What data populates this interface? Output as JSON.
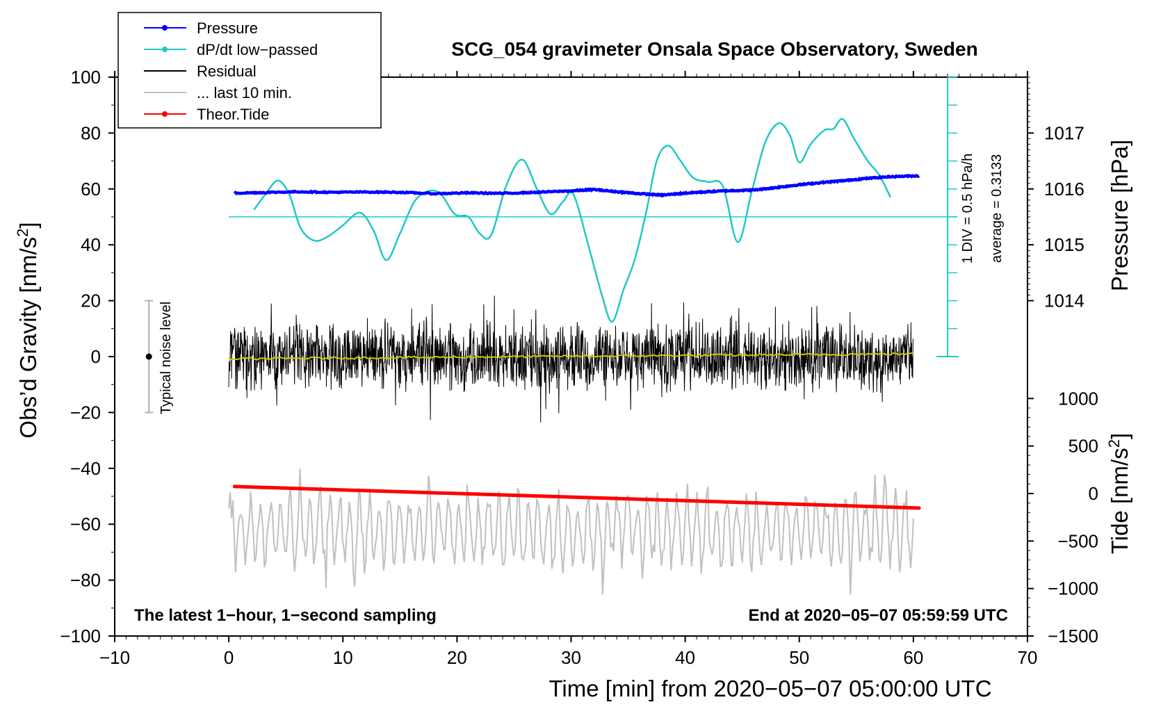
{
  "chart_data": {
    "type": "line",
    "title": "SCG_054 gravimeter Onsala Space Observatory, Sweden",
    "xlabel": "Time [min] from 2020−05−07 05:00:00 UTC",
    "ylabel_left": "Obs’d Gravity [nm/s",
    "ylabel_left_sup": "2",
    "ylabel_left_end": "]",
    "ylabel_right_pressure": "Pressure [hPa]",
    "ylabel_right_tide": "Tide [nm/s",
    "ylabel_right_tide_sup": "2",
    "ylabel_right_tide_end": "]",
    "xlim": [
      -10,
      70
    ],
    "ylim": [
      -100,
      100
    ],
    "x_ticks": [
      -10,
      0,
      10,
      20,
      30,
      40,
      50,
      60,
      70
    ],
    "x_tick_labels": [
      "−10",
      "0",
      "10",
      "20",
      "30",
      "40",
      "50",
      "60",
      "70"
    ],
    "y_ticks": [
      -100,
      -80,
      -60,
      -40,
      -20,
      0,
      20,
      40,
      60,
      80,
      100
    ],
    "y_tick_labels": [
      "−100",
      "−80",
      "−60",
      "−40",
      "−20",
      "0",
      "20",
      "40",
      "60",
      "80",
      "100"
    ],
    "pressure_axis": {
      "ticks": [
        1014,
        1015,
        1016,
        1017
      ],
      "tick_labels": [
        "1014",
        "1015",
        "1016",
        "1017"
      ],
      "gravity_equivalent": [
        20,
        40,
        60,
        80
      ]
    },
    "tide_axis": {
      "ticks": [
        -1500,
        -1000,
        -500,
        0,
        500,
        1000
      ],
      "tick_labels": [
        "−1500",
        "−1000",
        "−500",
        "0",
        "500",
        "1000"
      ],
      "gravity_equivalent": [
        -100,
        -83,
        -66,
        -49,
        -32,
        -15
      ]
    },
    "legend": [
      {
        "label": "Pressure",
        "color": "#0000ff",
        "marker": true
      },
      {
        "label": "dP/dt low−passed",
        "color": "#20c8c8",
        "marker": true
      },
      {
        "label": "Residual",
        "color": "#000000",
        "marker": false
      },
      {
        "label": "... last 10 min.",
        "color": "#c0c0c0",
        "marker": false
      },
      {
        "label": "Theor.Tide",
        "color": "#ff0000",
        "marker": true
      }
    ],
    "annotations": {
      "bottom_left": "The latest 1−hour, 1−second sampling",
      "bottom_right": "End at 2020−05−07 05:59:59 UTC",
      "scale_div": "1 DIV = 0.5 hPa/h",
      "scale_average": "average = 0.3133",
      "noise": "Typical noise level"
    },
    "noise_bar": {
      "x": -7,
      "y_min": -20,
      "y_max": 20,
      "center": 0
    },
    "dpdt_scale": {
      "x": 63,
      "y_min": 0,
      "y_max": 100,
      "baseline": 50,
      "div_step": 10
    },
    "series": [
      {
        "name": "Pressure",
        "color": "#0000ff",
        "x": [
          0.5,
          3,
          6,
          9,
          12,
          15,
          18,
          21,
          24,
          27,
          30,
          32,
          34,
          36,
          38,
          40,
          42,
          44,
          46,
          48,
          50,
          52,
          54,
          56,
          58,
          60.5
        ],
        "y": [
          58.5,
          58.7,
          59,
          58.8,
          58.9,
          58.8,
          58.3,
          58.6,
          58.4,
          58.8,
          59.3,
          59.8,
          59,
          58.3,
          57.8,
          58.5,
          59,
          59.4,
          59.6,
          60.5,
          61.5,
          62.3,
          63,
          63.8,
          64.4,
          64.7
        ]
      },
      {
        "name": "dP/dt low−passed",
        "color": "#20c8c8",
        "x": [
          2.2,
          3.2,
          4.3,
          5.3,
          6.3,
          7.5,
          8.7,
          10,
          11.5,
          12.7,
          13.8,
          15,
          16.2,
          17.3,
          18.5,
          19.8,
          21,
          22,
          23,
          24.3,
          25.7,
          27,
          28.2,
          29.3,
          30.2,
          31.5,
          32.7,
          33.6,
          34.6,
          35.6,
          36.6,
          37.5,
          38.5,
          39.6,
          40.7,
          42,
          43.3,
          44.6,
          45.8,
          47,
          48.2,
          49.2,
          50,
          51,
          52.2,
          53,
          53.8,
          54.8,
          56,
          57,
          58
        ],
        "y": [
          52.5,
          58,
          63,
          58,
          46,
          41.5,
          43,
          47,
          51.5,
          45,
          34.5,
          44,
          55,
          59,
          58.5,
          51,
          50,
          44,
          43.5,
          61,
          70.5,
          60,
          51,
          55.5,
          58,
          40,
          22,
          12.5,
          24,
          35,
          52,
          70,
          75.5,
          70,
          64,
          62.5,
          61,
          41,
          58.5,
          76.5,
          83.5,
          79,
          69.5,
          76,
          81,
          81.5,
          85,
          78,
          70,
          65,
          57
        ]
      },
      {
        "name": "Theor.Tide",
        "color": "#ff0000",
        "x": [
          0.5,
          60.5
        ],
        "y": [
          -46.5,
          -54.2
        ]
      }
    ],
    "residual": {
      "name": "Residual",
      "color": "#000000",
      "x_range": [
        0,
        60
      ],
      "envelope": [
        -27,
        26
      ],
      "mean_line_color": "#cccc00"
    },
    "last10": {
      "name": "... last 10 min.",
      "color": "#c0c0c0",
      "x_range": [
        0,
        60
      ],
      "center": -62,
      "envelope": [
        -88,
        -37
      ]
    }
  }
}
